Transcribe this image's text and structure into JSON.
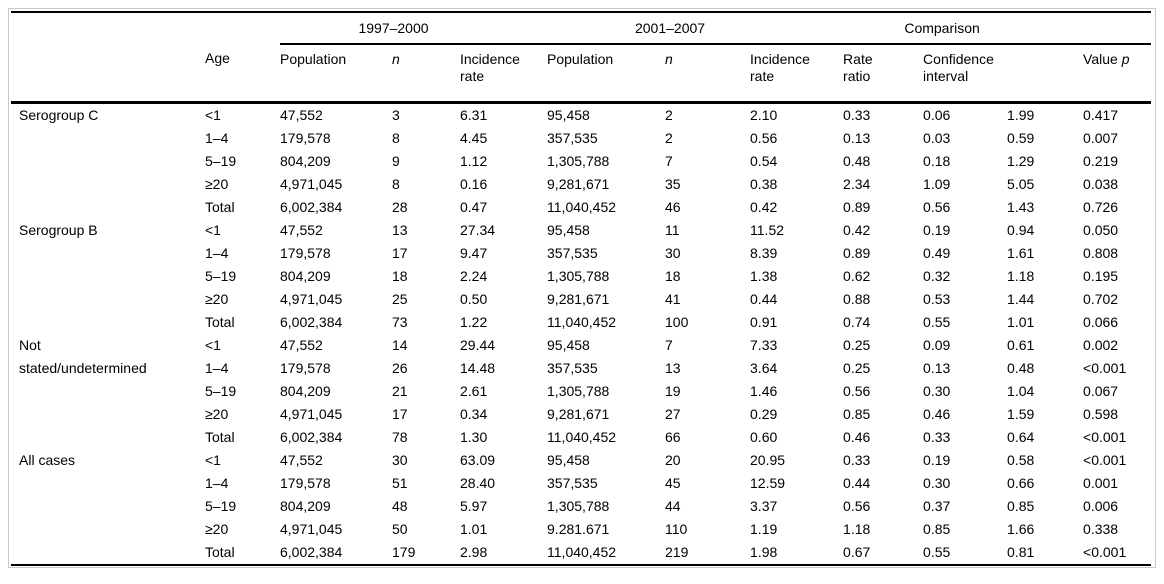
{
  "table": {
    "spanners": {
      "period1": "1997–2000",
      "period2": "2001–2007",
      "comparison": "Comparison"
    },
    "col_headers": {
      "age": "Age",
      "population": "Population",
      "n": "n",
      "incidence_rate": "Incidence rate",
      "rate_ratio": "Rate ratio",
      "confidence_interval": "Confidence interval",
      "value": "Value",
      "p": "p"
    },
    "groups": [
      {
        "label": "Serogroup C",
        "rows": [
          {
            "age": "<1",
            "pop1": "47,552",
            "n1": "3",
            "inc1": "6.31",
            "pop2": "95,458",
            "n2": "2",
            "inc2": "2.10",
            "ratio": "0.33",
            "ci_low": "0.06",
            "ci_high": "1.99",
            "p": "0.417"
          },
          {
            "age": "1–4",
            "pop1": "179,578",
            "n1": "8",
            "inc1": "4.45",
            "pop2": "357,535",
            "n2": "2",
            "inc2": "0.56",
            "ratio": "0.13",
            "ci_low": "0.03",
            "ci_high": "0.59",
            "p": "0.007"
          },
          {
            "age": "5–19",
            "pop1": "804,209",
            "n1": "9",
            "inc1": "1.12",
            "pop2": "1,305,788",
            "n2": "7",
            "inc2": "0.54",
            "ratio": "0.48",
            "ci_low": "0.18",
            "ci_high": "1.29",
            "p": "0.219"
          },
          {
            "age": "≥20",
            "pop1": "4,971,045",
            "n1": "8",
            "inc1": "0.16",
            "pop2": "9,281,671",
            "n2": "35",
            "inc2": "0.38",
            "ratio": "2.34",
            "ci_low": "1.09",
            "ci_high": "5.05",
            "p": "0.038"
          },
          {
            "age": "Total",
            "pop1": "6,002,384",
            "n1": "28",
            "inc1": "0.47",
            "pop2": "11,040,452",
            "n2": "46",
            "inc2": "0.42",
            "ratio": "0.89",
            "ci_low": "0.56",
            "ci_high": "1.43",
            "p": "0.726"
          }
        ]
      },
      {
        "label": "Serogroup B",
        "rows": [
          {
            "age": "<1",
            "pop1": "47,552",
            "n1": "13",
            "inc1": "27.34",
            "pop2": "95,458",
            "n2": "11",
            "inc2": "11.52",
            "ratio": "0.42",
            "ci_low": "0.19",
            "ci_high": "0.94",
            "p": "0.050"
          },
          {
            "age": "1–4",
            "pop1": "179,578",
            "n1": "17",
            "inc1": "9.47",
            "pop2": "357,535",
            "n2": "30",
            "inc2": "8.39",
            "ratio": "0.89",
            "ci_low": "0.49",
            "ci_high": "1.61",
            "p": "0.808"
          },
          {
            "age": "5–19",
            "pop1": "804,209",
            "n1": "18",
            "inc1": "2.24",
            "pop2": "1,305,788",
            "n2": "18",
            "inc2": "1.38",
            "ratio": "0.62",
            "ci_low": "0.32",
            "ci_high": "1.18",
            "p": "0.195"
          },
          {
            "age": "≥20",
            "pop1": "4,971,045",
            "n1": "25",
            "inc1": "0.50",
            "pop2": "9,281,671",
            "n2": "41",
            "inc2": "0.44",
            "ratio": "0.88",
            "ci_low": "0.53",
            "ci_high": "1.44",
            "p": "0.702"
          },
          {
            "age": "Total",
            "pop1": "6,002,384",
            "n1": "73",
            "inc1": "1.22",
            "pop2": "11,040,452",
            "n2": "100",
            "inc2": "0.91",
            "ratio": "0.74",
            "ci_low": "0.55",
            "ci_high": "1.01",
            "p": "0.066"
          }
        ]
      },
      {
        "label": "Not stated/undetermined",
        "rows": [
          {
            "age": "<1",
            "pop1": "47,552",
            "n1": "14",
            "inc1": "29.44",
            "pop2": "95,458",
            "n2": "7",
            "inc2": "7.33",
            "ratio": "0.25",
            "ci_low": "0.09",
            "ci_high": "0.61",
            "p": "0.002"
          },
          {
            "age": "1–4",
            "pop1": "179,578",
            "n1": "26",
            "inc1": "14.48",
            "pop2": "357,535",
            "n2": "13",
            "inc2": "3.64",
            "ratio": "0.25",
            "ci_low": "0.13",
            "ci_high": "0.48",
            "p": "<0.001"
          },
          {
            "age": "5–19",
            "pop1": "804,209",
            "n1": "21",
            "inc1": "2.61",
            "pop2": "1,305,788",
            "n2": "19",
            "inc2": "1.46",
            "ratio": "0.56",
            "ci_low": "0.30",
            "ci_high": "1.04",
            "p": "0.067"
          },
          {
            "age": "≥20",
            "pop1": "4,971,045",
            "n1": "17",
            "inc1": "0.34",
            "pop2": "9,281,671",
            "n2": "27",
            "inc2": "0.29",
            "ratio": "0.85",
            "ci_low": "0.46",
            "ci_high": "1.59",
            "p": "0.598"
          },
          {
            "age": "Total",
            "pop1": "6,002,384",
            "n1": "78",
            "inc1": "1.30",
            "pop2": "11,040,452",
            "n2": "66",
            "inc2": "0.60",
            "ratio": "0.46",
            "ci_low": "0.33",
            "ci_high": "0.64",
            "p": "<0.001"
          }
        ]
      },
      {
        "label": "All cases",
        "rows": [
          {
            "age": "<1",
            "pop1": "47,552",
            "n1": "30",
            "inc1": "63.09",
            "pop2": "95,458",
            "n2": "20",
            "inc2": "20.95",
            "ratio": "0.33",
            "ci_low": "0.19",
            "ci_high": "0.58",
            "p": "<0.001"
          },
          {
            "age": "1–4",
            "pop1": "179,578",
            "n1": "51",
            "inc1": "28.40",
            "pop2": "357,535",
            "n2": "45",
            "inc2": "12.59",
            "ratio": "0.44",
            "ci_low": "0.30",
            "ci_high": "0.66",
            "p": "0.001"
          },
          {
            "age": "5–19",
            "pop1": "804,209",
            "n1": "48",
            "inc1": "5.97",
            "pop2": "1,305,788",
            "n2": "44",
            "inc2": "3.37",
            "ratio": "0.56",
            "ci_low": "0.37",
            "ci_high": "0.85",
            "p": "0.006"
          },
          {
            "age": "≥20",
            "pop1": "4,971,045",
            "n1": "50",
            "inc1": "1.01",
            "pop2": "9.281.671",
            "n2": "110",
            "inc2": "1.19",
            "ratio": "1.18",
            "ci_low": "0.85",
            "ci_high": "1.66",
            "p": "0.338"
          },
          {
            "age": "Total",
            "pop1": "6,002,384",
            "n1": "179",
            "inc1": "2.98",
            "pop2": "11,040,452",
            "n2": "219",
            "inc2": "1.98",
            "ratio": "0.67",
            "ci_low": "0.55",
            "ci_high": "0.81",
            "p": "<0.001"
          }
        ]
      }
    ]
  }
}
